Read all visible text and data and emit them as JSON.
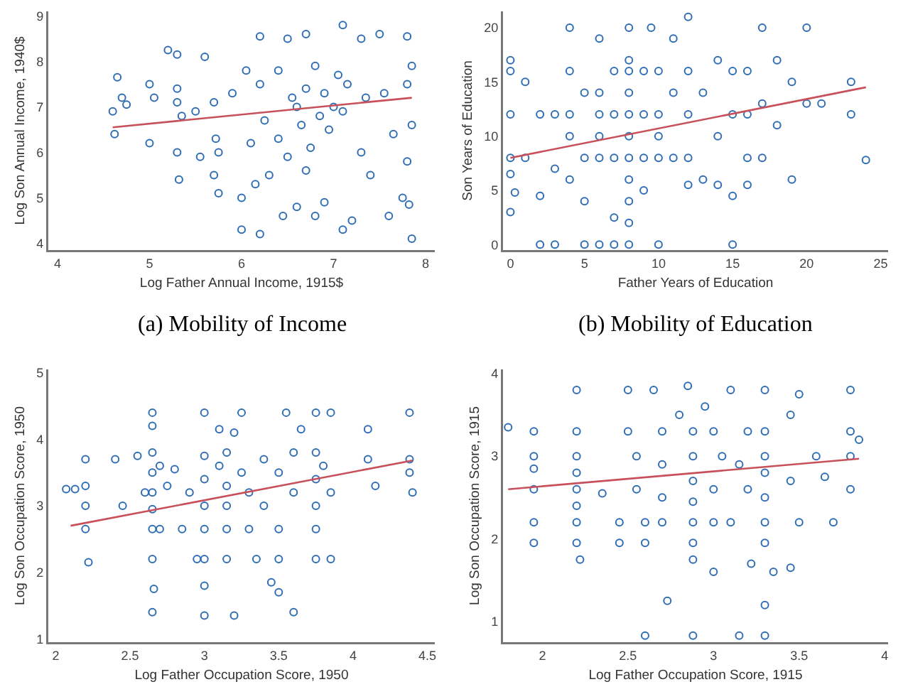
{
  "chart_data": [
    {
      "type": "scatter",
      "title": "(a) Mobility of Income",
      "xlabel": "Log Father Annual Income, 1915$",
      "ylabel": "Log Son Annual Income, 1940$",
      "xlim": [
        3.9,
        8.1
      ],
      "ylim": [
        3.85,
        9.1
      ],
      "xticks": [
        4,
        5,
        6,
        7,
        8
      ],
      "yticks": [
        4,
        5,
        6,
        7,
        8,
        9
      ],
      "series": [
        {
          "marker": "circle",
          "color": "#2f6db5",
          "x": [
            4.6,
            4.65,
            4.62,
            4.7,
            4.75,
            5.0,
            5.05,
            5.0,
            5.2,
            5.3,
            5.3,
            5.3,
            5.32,
            5.35,
            5.3,
            5.5,
            5.55,
            5.6,
            5.7,
            5.72,
            5.75,
            5.7,
            5.75,
            5.9,
            6.0,
            6.0,
            6.05,
            6.1,
            6.15,
            6.2,
            6.2,
            6.2,
            6.25,
            6.3,
            6.4,
            6.4,
            6.45,
            6.5,
            6.5,
            6.55,
            6.6,
            6.6,
            6.65,
            6.7,
            6.7,
            6.7,
            6.75,
            6.8,
            6.8,
            6.85,
            6.9,
            6.9,
            6.95,
            7.0,
            7.05,
            7.1,
            7.1,
            7.1,
            7.15,
            7.2,
            7.3,
            7.3,
            7.35,
            7.4,
            7.5,
            7.55,
            7.6,
            7.65,
            7.75,
            7.8,
            7.8,
            7.85,
            7.85,
            7.82,
            7.85,
            7.8
          ],
          "values": [
            6.9,
            7.65,
            6.4,
            7.2,
            7.05,
            7.5,
            7.2,
            6.2,
            8.25,
            8.15,
            7.4,
            6.0,
            5.4,
            6.8,
            7.1,
            6.9,
            5.9,
            8.1,
            7.1,
            6.3,
            5.1,
            5.5,
            6.0,
            7.3,
            5.0,
            4.3,
            7.8,
            6.2,
            5.3,
            4.2,
            7.5,
            8.55,
            6.7,
            5.5,
            7.8,
            6.3,
            4.6,
            8.5,
            5.9,
            7.2,
            7.0,
            4.8,
            6.6,
            8.6,
            7.4,
            5.6,
            6.1,
            7.9,
            4.6,
            6.8,
            7.3,
            4.9,
            6.5,
            7.0,
            7.7,
            4.3,
            8.8,
            6.9,
            7.5,
            4.5,
            8.5,
            6.0,
            7.2,
            5.5,
            8.6,
            7.3,
            4.6,
            6.4,
            5.0,
            8.55,
            7.5,
            6.6,
            4.1,
            4.85,
            7.9,
            5.8
          ]
        },
        {
          "type": "line",
          "marker": "none",
          "color": "#c8505a",
          "x": [
            4.6,
            7.85
          ],
          "values": [
            6.55,
            7.2
          ]
        }
      ]
    },
    {
      "type": "scatter",
      "title": "(b) Mobility of Education",
      "xlabel": "Father Years of Education",
      "ylabel": "Son Years of Education",
      "xlim": [
        -0.5,
        25.5
      ],
      "ylim": [
        -0.5,
        21.5
      ],
      "xticks": [
        0,
        5,
        10,
        15,
        20,
        25
      ],
      "yticks": [
        0,
        5,
        10,
        15,
        20
      ],
      "series": [
        {
          "marker": "circle",
          "color": "#2f6db5",
          "x": [
            0,
            0,
            0,
            0,
            0,
            0,
            0.3,
            1,
            1,
            2,
            2,
            2,
            3,
            3,
            3,
            4,
            4,
            4,
            4,
            4,
            5,
            5,
            5,
            5,
            6,
            6,
            6,
            6,
            6,
            6,
            7,
            7,
            7,
            7,
            7,
            8,
            8,
            8,
            8,
            8,
            8,
            8,
            8,
            8,
            8,
            8,
            9,
            9,
            9,
            9,
            9.5,
            10,
            10,
            10,
            10,
            10,
            11,
            11,
            11,
            12,
            12,
            12,
            12,
            12,
            13,
            13,
            14,
            14,
            14,
            15,
            15,
            15,
            15,
            16,
            16,
            16,
            16,
            17,
            17,
            17,
            18,
            18,
            19,
            19,
            20,
            20,
            21,
            23,
            23,
            24
          ],
          "values": [
            17,
            16,
            12,
            8,
            3,
            6.5,
            4.8,
            15,
            8,
            12,
            4.5,
            0,
            7,
            0,
            12,
            20,
            16,
            10,
            6,
            12,
            8,
            14,
            4,
            0,
            19,
            12,
            10,
            8,
            14,
            0,
            12,
            16,
            8,
            2.5,
            0,
            20,
            17,
            16,
            14,
            12,
            10,
            8,
            6,
            4,
            2,
            0,
            12,
            16,
            8,
            5,
            20,
            12,
            16,
            8,
            10,
            0,
            14,
            19,
            8,
            21,
            16,
            12,
            8,
            5.5,
            14,
            6,
            17,
            10,
            5.5,
            16,
            12,
            4.5,
            0,
            16,
            12,
            8,
            5.5,
            20,
            13,
            8,
            17,
            11,
            15,
            6,
            20,
            13,
            13,
            12,
            15,
            7.8
          ]
        },
        {
          "type": "line",
          "marker": "none",
          "color": "#c8505a",
          "x": [
            0,
            24
          ],
          "values": [
            8.0,
            14.5
          ]
        }
      ]
    },
    {
      "type": "scatter",
      "xlabel": "Log Father Occupation Score, 1950",
      "ylabel": "Log Son Occupation Score, 1950",
      "xlim": [
        1.95,
        4.55
      ],
      "ylim": [
        0.95,
        5.05
      ],
      "xticks": [
        2,
        2.5,
        3,
        3.5,
        4,
        4.5
      ],
      "yticks": [
        1,
        2,
        3,
        4,
        5
      ],
      "series": [
        {
          "marker": "circle",
          "color": "#2f6db5",
          "x": [
            2.07,
            2.13,
            2.2,
            2.2,
            2.2,
            2.2,
            2.22,
            2.4,
            2.45,
            2.55,
            2.6,
            2.65,
            2.65,
            2.65,
            2.65,
            2.65,
            2.65,
            2.65,
            2.65,
            2.65,
            2.66,
            2.7,
            2.7,
            2.75,
            2.8,
            2.85,
            2.9,
            2.95,
            3.0,
            3.0,
            3.0,
            3.0,
            3.0,
            3.0,
            3.0,
            3.0,
            3.1,
            3.1,
            3.15,
            3.15,
            3.15,
            3.15,
            3.15,
            3.2,
            3.2,
            3.25,
            3.25,
            3.3,
            3.3,
            3.35,
            3.4,
            3.4,
            3.45,
            3.5,
            3.5,
            3.5,
            3.5,
            3.55,
            3.6,
            3.6,
            3.6,
            3.65,
            3.75,
            3.75,
            3.75,
            3.75,
            3.75,
            3.75,
            3.8,
            3.85,
            3.85,
            3.85,
            4.1,
            4.1,
            4.15,
            4.38,
            4.38,
            4.4,
            4.38
          ],
          "values": [
            3.25,
            3.25,
            3.7,
            3.3,
            3.0,
            2.65,
            2.15,
            3.7,
            3.0,
            3.75,
            3.2,
            3.8,
            3.5,
            3.2,
            2.95,
            2.65,
            2.2,
            1.4,
            4.4,
            4.2,
            1.75,
            3.6,
            2.65,
            3.3,
            3.55,
            2.65,
            3.2,
            2.2,
            3.75,
            3.4,
            3.0,
            2.65,
            2.2,
            4.4,
            1.8,
            1.35,
            3.6,
            4.15,
            3.8,
            3.3,
            3.0,
            2.65,
            2.2,
            4.1,
            1.35,
            3.5,
            4.4,
            3.2,
            2.65,
            2.2,
            3.7,
            3.0,
            1.85,
            3.5,
            2.65,
            2.2,
            1.7,
            4.4,
            3.8,
            3.2,
            1.4,
            4.15,
            3.8,
            3.4,
            3.0,
            2.65,
            2.2,
            4.4,
            3.6,
            3.2,
            2.2,
            4.4,
            4.15,
            3.7,
            3.3,
            4.4,
            3.7,
            3.2,
            3.5
          ]
        },
        {
          "type": "line",
          "marker": "none",
          "color": "#c8505a",
          "x": [
            2.1,
            4.4
          ],
          "values": [
            2.7,
            3.68
          ]
        }
      ]
    },
    {
      "type": "scatter",
      "xlabel": "Log Father Occupation Score, 1915",
      "ylabel": "Log Son Occupation Score, 1915",
      "xlim": [
        1.77,
        4.02
      ],
      "ylim": [
        0.75,
        4.05
      ],
      "xticks": [
        2,
        2.5,
        3,
        3.5,
        4
      ],
      "yticks": [
        1,
        2,
        3,
        4
      ],
      "series": [
        {
          "marker": "circle",
          "color": "#2f6db5",
          "x": [
            1.8,
            1.95,
            1.95,
            1.95,
            1.95,
            1.95,
            1.95,
            2.2,
            2.2,
            2.2,
            2.2,
            2.2,
            2.2,
            2.2,
            2.2,
            2.22,
            2.35,
            2.45,
            2.45,
            2.5,
            2.5,
            2.55,
            2.55,
            2.6,
            2.6,
            2.6,
            2.65,
            2.7,
            2.7,
            2.7,
            2.7,
            2.73,
            2.8,
            2.85,
            2.88,
            2.88,
            2.88,
            2.88,
            2.88,
            2.88,
            2.88,
            2.88,
            2.95,
            3.0,
            3.0,
            3.0,
            3.0,
            3.05,
            3.1,
            3.1,
            3.15,
            3.15,
            3.2,
            3.2,
            3.22,
            3.3,
            3.3,
            3.3,
            3.3,
            3.3,
            3.3,
            3.3,
            3.3,
            3.3,
            3.35,
            3.45,
            3.45,
            3.45,
            3.5,
            3.5,
            3.6,
            3.65,
            3.7,
            3.8,
            3.8,
            3.8,
            3.8,
            3.85
          ],
          "values": [
            3.35,
            3.3,
            3.0,
            2.85,
            2.6,
            2.2,
            1.95,
            3.8,
            3.3,
            3.0,
            2.8,
            2.6,
            2.4,
            2.2,
            1.95,
            1.75,
            2.55,
            2.2,
            1.95,
            3.8,
            3.3,
            3.0,
            2.6,
            2.2,
            1.95,
            0.83,
            3.8,
            3.3,
            2.9,
            2.5,
            2.2,
            1.25,
            3.5,
            3.85,
            3.3,
            3.0,
            2.7,
            2.45,
            2.2,
            1.95,
            1.75,
            0.83,
            3.6,
            3.3,
            2.6,
            2.2,
            1.6,
            3.0,
            3.8,
            2.2,
            2.9,
            0.83,
            3.3,
            2.6,
            1.7,
            3.8,
            3.3,
            3.0,
            2.8,
            2.5,
            2.2,
            1.95,
            1.2,
            0.83,
            1.6,
            3.5,
            2.7,
            1.65,
            3.75,
            2.2,
            3.0,
            2.75,
            2.2,
            3.8,
            3.3,
            3.0,
            2.6,
            3.2
          ]
        },
        {
          "type": "line",
          "marker": "none",
          "color": "#c8505a",
          "x": [
            1.8,
            3.85
          ],
          "values": [
            2.6,
            2.97
          ]
        }
      ]
    }
  ]
}
